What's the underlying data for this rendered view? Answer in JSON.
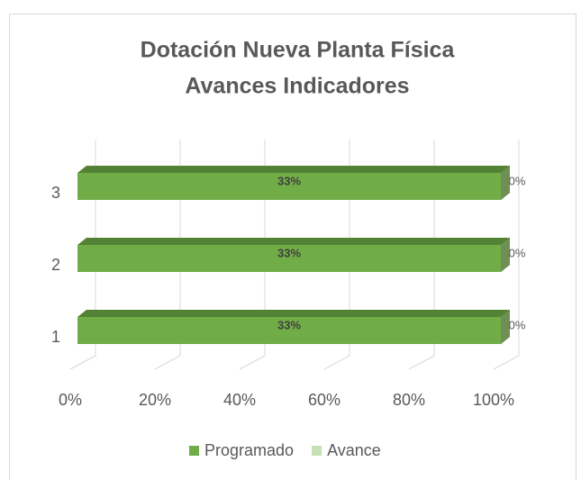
{
  "chart_data": {
    "type": "bar",
    "orientation": "horizontal",
    "stacking": "percent",
    "title": [
      "Dotación Nueva Planta Física",
      "Avances Indicadores"
    ],
    "categories": [
      "1",
      "2",
      "3"
    ],
    "series": [
      {
        "name": "Programado",
        "color": "#70ad47",
        "values": [
          33,
          33,
          33
        ],
        "value_labels": [
          "33%",
          "33%",
          "33%"
        ]
      },
      {
        "name": "Avance",
        "color": "#c5e0b4",
        "values": [
          0,
          0,
          0
        ],
        "value_labels": [
          "0%",
          "0%",
          "0%"
        ]
      }
    ],
    "xlim": [
      0,
      100
    ],
    "xticks": [
      {
        "value": 0,
        "label": "0%"
      },
      {
        "value": 20,
        "label": "20%"
      },
      {
        "value": 40,
        "label": "40%"
      },
      {
        "value": 60,
        "label": "60%"
      },
      {
        "value": 80,
        "label": "80%"
      },
      {
        "value": 100,
        "label": "100%"
      }
    ],
    "grid": true,
    "legend": "bottom"
  }
}
